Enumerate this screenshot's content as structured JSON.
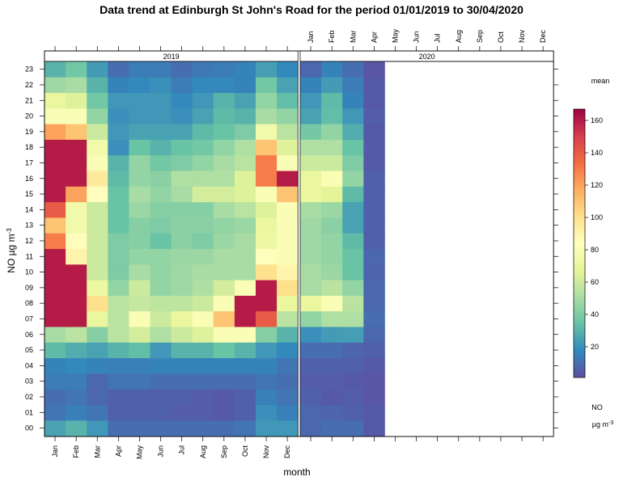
{
  "chart_data": {
    "type": "heatmap",
    "title": "Data trend at Edinburgh St John's Road for the period 01/01/2019 to 30/04/2020",
    "xlabel": "month",
    "ylabel": "NO µg m⁻³",
    "ylabel_parts": {
      "base": "NO µg m",
      "sup": "-3"
    },
    "months": [
      "Jan",
      "Feb",
      "Mar",
      "Apr",
      "May",
      "Jun",
      "Jul",
      "Aug",
      "Sep",
      "Oct",
      "Nov",
      "Dec"
    ],
    "hours": [
      "00",
      "01",
      "02",
      "03",
      "04",
      "05",
      "06",
      "07",
      "08",
      "09",
      "10",
      "11",
      "12",
      "13",
      "14",
      "15",
      "16",
      "17",
      "18",
      "19",
      "20",
      "21",
      "22",
      "23"
    ],
    "panels": [
      {
        "strip": "2019",
        "n_months": 12,
        "values": [
          [
            25,
            30,
            22,
            10,
            10,
            10,
            10,
            10,
            10,
            12,
            22,
            22
          ],
          [
            12,
            15,
            12,
            6,
            6,
            6,
            5,
            5,
            4,
            6,
            20,
            15
          ],
          [
            10,
            12,
            8,
            6,
            6,
            6,
            6,
            5,
            4,
            6,
            15,
            12
          ],
          [
            14,
            14,
            8,
            12,
            12,
            10,
            10,
            10,
            10,
            10,
            12,
            10
          ],
          [
            16,
            18,
            16,
            15,
            15,
            16,
            16,
            16,
            16,
            16,
            16,
            12
          ],
          [
            32,
            28,
            25,
            30,
            33,
            22,
            30,
            30,
            35,
            30,
            22,
            18
          ],
          [
            50,
            55,
            42,
            55,
            62,
            52,
            60,
            65,
            80,
            80,
            42,
            30
          ],
          [
            160,
            160,
            70,
            55,
            80,
            60,
            70,
            80,
            110,
            160,
            140,
            55
          ],
          [
            160,
            160,
            100,
            55,
            58,
            56,
            56,
            60,
            80,
            160,
            160,
            70
          ],
          [
            160,
            160,
            72,
            45,
            60,
            45,
            48,
            52,
            62,
            80,
            160,
            100
          ],
          [
            160,
            160,
            60,
            40,
            50,
            45,
            48,
            50,
            50,
            50,
            100,
            90
          ],
          [
            160,
            90,
            60,
            40,
            45,
            45,
            47,
            47,
            50,
            50,
            85,
            80
          ],
          [
            130,
            85,
            60,
            40,
            42,
            35,
            43,
            40,
            47,
            50,
            72,
            80
          ],
          [
            110,
            75,
            60,
            35,
            42,
            40,
            43,
            43,
            45,
            47,
            70,
            80
          ],
          [
            140,
            75,
            60,
            35,
            47,
            42,
            42,
            42,
            50,
            55,
            65,
            80
          ],
          [
            160,
            120,
            85,
            35,
            50,
            45,
            50,
            62,
            62,
            65,
            80,
            110
          ],
          [
            160,
            160,
            95,
            32,
            45,
            43,
            52,
            52,
            52,
            65,
            130,
            160
          ],
          [
            160,
            160,
            80,
            30,
            45,
            37,
            40,
            45,
            50,
            55,
            130,
            80
          ],
          [
            160,
            160,
            75,
            20,
            35,
            30,
            35,
            37,
            45,
            52,
            110,
            65
          ],
          [
            120,
            110,
            60,
            22,
            25,
            25,
            25,
            32,
            35,
            40,
            75,
            55
          ],
          [
            80,
            80,
            45,
            20,
            22,
            22,
            20,
            25,
            32,
            30,
            50,
            45
          ],
          [
            70,
            65,
            37,
            22,
            22,
            22,
            18,
            22,
            30,
            25,
            45,
            33
          ],
          [
            48,
            50,
            30,
            16,
            18,
            20,
            14,
            18,
            18,
            16,
            37,
            25
          ],
          [
            30,
            37,
            23,
            10,
            14,
            14,
            10,
            13,
            14,
            16,
            24,
            18
          ]
        ]
      },
      {
        "strip": "2020",
        "n_months": 4,
        "values": [
          [
            8,
            10,
            10,
            4
          ],
          [
            8,
            7,
            6,
            4
          ],
          [
            6,
            4,
            5,
            3
          ],
          [
            5,
            5,
            4,
            3
          ],
          [
            6,
            6,
            6,
            4
          ],
          [
            10,
            10,
            7,
            6
          ],
          [
            20,
            23,
            24,
            8
          ],
          [
            45,
            52,
            52,
            10
          ],
          [
            70,
            80,
            55,
            8
          ],
          [
            50,
            55,
            45,
            8
          ],
          [
            50,
            47,
            35,
            7
          ],
          [
            48,
            45,
            35,
            8
          ],
          [
            48,
            45,
            32,
            6
          ],
          [
            48,
            43,
            25,
            6
          ],
          [
            50,
            47,
            25,
            6
          ],
          [
            70,
            67,
            32,
            6
          ],
          [
            70,
            80,
            45,
            6
          ],
          [
            60,
            60,
            40,
            4
          ],
          [
            52,
            52,
            35,
            4
          ],
          [
            38,
            45,
            28,
            4
          ],
          [
            25,
            33,
            22,
            5
          ],
          [
            22,
            32,
            16,
            4
          ],
          [
            16,
            23,
            14,
            4
          ],
          [
            8,
            16,
            10,
            3
          ]
        ]
      }
    ],
    "legend": {
      "title": "mean",
      "min": 1,
      "max": 167,
      "ticks": [
        20,
        40,
        60,
        80,
        100,
        120,
        140,
        160
      ],
      "footer_name": "NO",
      "footer_unit_base": "µg m",
      "footer_unit_sup": "-3",
      "colors": [
        "#5e4fa2",
        "#3288bd",
        "#66c2a5",
        "#abdda4",
        "#e6f598",
        "#ffffbf",
        "#fee08b",
        "#fdae61",
        "#f46d43",
        "#d53e4f",
        "#9e0142"
      ]
    }
  }
}
